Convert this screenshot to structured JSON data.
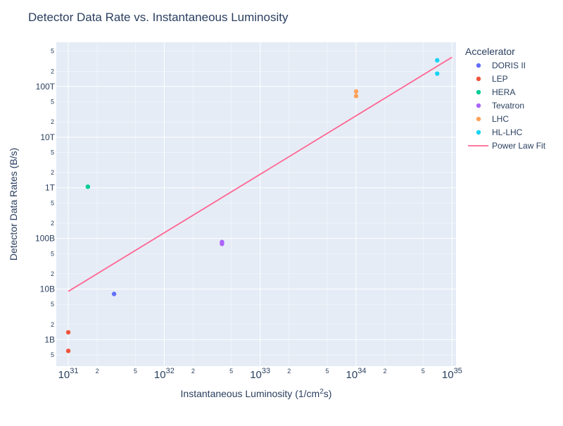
{
  "chart_data": {
    "type": "scatter",
    "title": "Detector Data Rate vs. Instantaneous Luminosity",
    "xlabel": {
      "base": "Instantaneous Luminosity (1/cm",
      "sup": "2",
      "tail": "s)"
    },
    "ylabel": "Detector Data Rates (B/s)",
    "x_scale": "log",
    "y_scale": "log",
    "xlim": [
      7.5e+30,
      1.1e+35
    ],
    "ylim": [
      300000000.0,
      750000000000000.0
    ],
    "grid": true,
    "x_major_ticks": [
      {
        "mantissa": "10",
        "exp": "31",
        "value": 1e+31
      },
      {
        "mantissa": "10",
        "exp": "32",
        "value": 1e+32
      },
      {
        "mantissa": "10",
        "exp": "33",
        "value": 1e+33
      },
      {
        "mantissa": "10",
        "exp": "34",
        "value": 1e+34
      },
      {
        "mantissa": "10",
        "exp": "35",
        "value": 1e+35
      }
    ],
    "x_minor_ticks": [
      {
        "label": "2",
        "value": 2e+31
      },
      {
        "label": "5",
        "value": 5e+31
      },
      {
        "label": "2",
        "value": 2e+32
      },
      {
        "label": "5",
        "value": 5e+32
      },
      {
        "label": "2",
        "value": 2e+33
      },
      {
        "label": "5",
        "value": 5e+33
      },
      {
        "label": "2",
        "value": 2e+34
      },
      {
        "label": "5",
        "value": 5e+34
      }
    ],
    "y_major_ticks": [
      {
        "label": "1B",
        "value": 1000000000.0
      },
      {
        "label": "10B",
        "value": 10000000000.0
      },
      {
        "label": "100B",
        "value": 100000000000.0
      },
      {
        "label": "1T",
        "value": 1000000000000.0
      },
      {
        "label": "10T",
        "value": 10000000000000.0
      },
      {
        "label": "100T",
        "value": 100000000000000.0
      }
    ],
    "y_minor_ticks": [
      {
        "label": "5",
        "value": 500000000.0
      },
      {
        "label": "2",
        "value": 2000000000.0
      },
      {
        "label": "5",
        "value": 5000000000.0
      },
      {
        "label": "2",
        "value": 20000000000.0
      },
      {
        "label": "5",
        "value": 50000000000.0
      },
      {
        "label": "2",
        "value": 200000000000.0
      },
      {
        "label": "5",
        "value": 500000000000.0
      },
      {
        "label": "2",
        "value": 2000000000000.0
      },
      {
        "label": "5",
        "value": 5000000000000.0
      },
      {
        "label": "2",
        "value": 20000000000000.0
      },
      {
        "label": "5",
        "value": 50000000000000.0
      },
      {
        "label": "2",
        "value": 200000000000000.0
      },
      {
        "label": "5",
        "value": 500000000000000.0
      }
    ],
    "legend_title": "Accelerator",
    "legend_position": "right",
    "series": [
      {
        "name": "DORIS II",
        "color": "#636efa",
        "points": [
          {
            "x": 3e+31,
            "y": 8000000000.0
          }
        ]
      },
      {
        "name": "LEP",
        "color": "#ef553b",
        "points": [
          {
            "x": 1e+31,
            "y": 1400000000.0
          },
          {
            "x": 1e+31,
            "y": 600000000.0
          }
        ]
      },
      {
        "name": "HERA",
        "color": "#00cc96",
        "points": [
          {
            "x": 1.6e+31,
            "y": 1050000000000.0
          }
        ]
      },
      {
        "name": "Tevatron",
        "color": "#ab63fa",
        "points": [
          {
            "x": 4e+32,
            "y": 85000000000.0
          },
          {
            "x": 4e+32,
            "y": 78000000000.0
          }
        ]
      },
      {
        "name": "LHC",
        "color": "#ffa15a",
        "points": [
          {
            "x": 1e+34,
            "y": 80000000000000.0
          },
          {
            "x": 1e+34,
            "y": 65000000000000.0
          }
        ]
      },
      {
        "name": "HL-LHC",
        "color": "#19d3f3",
        "points": [
          {
            "x": 7e+34,
            "y": 330000000000000.0
          },
          {
            "x": 7e+34,
            "y": 180000000000000.0
          }
        ]
      }
    ],
    "fit_line": {
      "name": "Power Law Fit",
      "color": "#ff6692",
      "points": [
        {
          "x": 1e+31,
          "y": 9000000000.0
        },
        {
          "x": 1e+35,
          "y": 380000000000000.0
        }
      ]
    }
  }
}
